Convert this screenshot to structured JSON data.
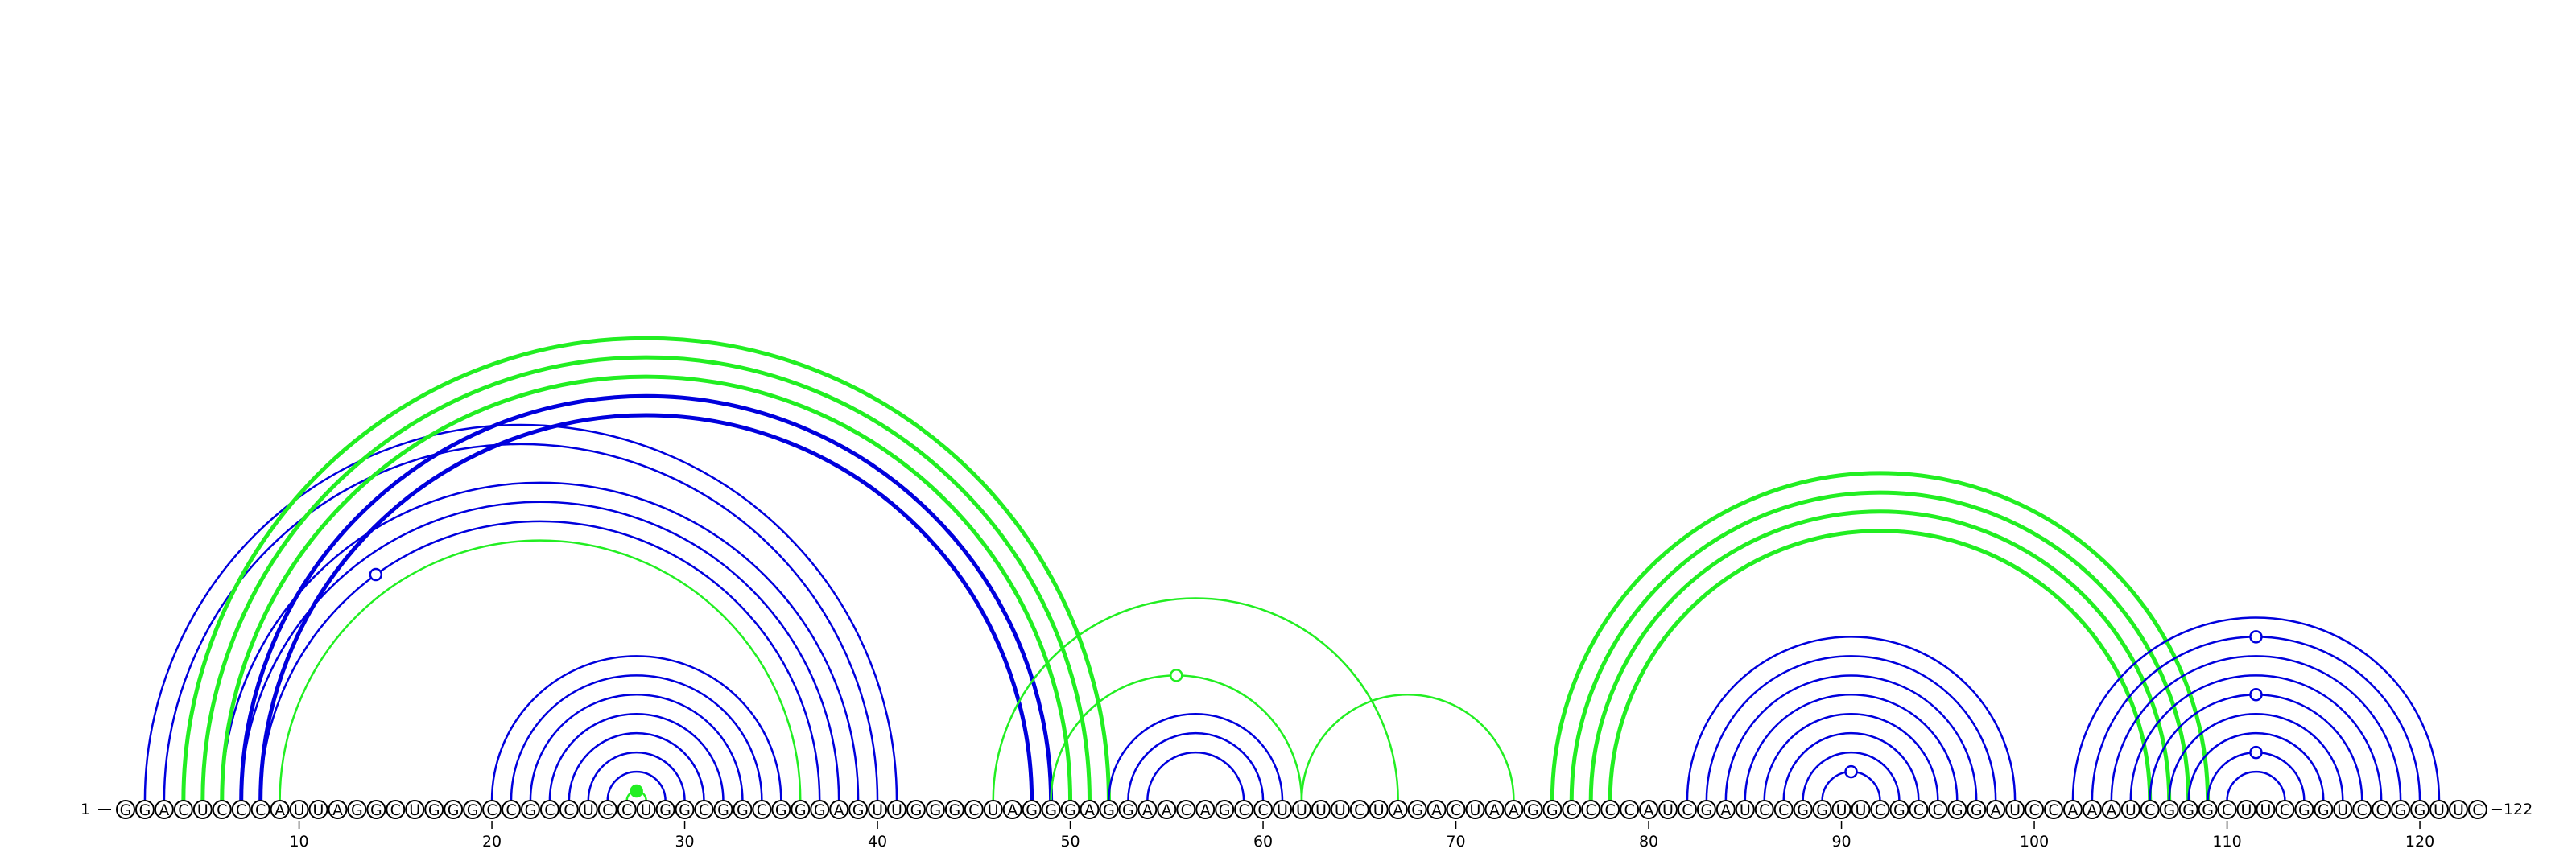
{
  "diagram": {
    "sequence": "GGACUCCCAUUAGGCUGGGCCGCCUCCUGGCGGCGGGAGUUGGGCUAGGGAGGAACAGCCUUUUCUAGACUAAGGCCCCAUCGAUCCGGUUCGCCGGAUCCAAAUCGGGCUUCGGUCCGGUUC",
    "start_label": "1",
    "end_label": "122",
    "ticks": [
      10,
      20,
      30,
      40,
      50,
      60,
      70,
      80,
      90,
      100,
      110,
      120
    ],
    "colors": {
      "blue": "#0000dd",
      "green": "#22ee22",
      "text": "#000000"
    },
    "arcs": [
      {
        "i": 2,
        "j": 41,
        "color": "blue",
        "weight": 1
      },
      {
        "i": 3,
        "j": 40,
        "color": "blue",
        "weight": 1
      },
      {
        "i": 6,
        "j": 39,
        "color": "blue",
        "weight": 1
      },
      {
        "i": 7,
        "j": 38,
        "color": "blue",
        "weight": 1
      },
      {
        "i": 8,
        "j": 37,
        "color": "blue",
        "weight": 1
      },
      {
        "i": 4,
        "j": 52,
        "color": "green",
        "weight": 2
      },
      {
        "i": 5,
        "j": 51,
        "color": "green",
        "weight": 2
      },
      {
        "i": 6,
        "j": 50,
        "color": "green",
        "weight": 2
      },
      {
        "i": 7,
        "j": 49,
        "color": "blue",
        "weight": 2
      },
      {
        "i": 8,
        "j": 48,
        "color": "blue",
        "weight": 2
      },
      {
        "i": 9,
        "j": 36,
        "color": "green",
        "weight": 1
      },
      {
        "i": 20,
        "j": 35,
        "color": "blue",
        "weight": 1
      },
      {
        "i": 21,
        "j": 34,
        "color": "blue",
        "weight": 1
      },
      {
        "i": 22,
        "j": 33,
        "color": "blue",
        "weight": 1
      },
      {
        "i": 23,
        "j": 32,
        "color": "blue",
        "weight": 1
      },
      {
        "i": 24,
        "j": 31,
        "color": "blue",
        "weight": 1
      },
      {
        "i": 25,
        "j": 30,
        "color": "blue",
        "weight": 1
      },
      {
        "i": 26,
        "j": 29,
        "color": "blue",
        "weight": 1
      },
      {
        "i": 27,
        "j": 28,
        "color": "green",
        "weight": 1
      },
      {
        "i": 46,
        "j": 67,
        "color": "green",
        "weight": 1
      },
      {
        "i": 49,
        "j": 62,
        "color": "green",
        "weight": 1
      },
      {
        "i": 52,
        "j": 61,
        "color": "blue",
        "weight": 1
      },
      {
        "i": 53,
        "j": 60,
        "color": "blue",
        "weight": 1
      },
      {
        "i": 54,
        "j": 59,
        "color": "blue",
        "weight": 1
      },
      {
        "i": 62,
        "j": 73,
        "color": "green",
        "weight": 1
      },
      {
        "i": 75,
        "j": 109,
        "color": "green",
        "weight": 2
      },
      {
        "i": 76,
        "j": 108,
        "color": "green",
        "weight": 2
      },
      {
        "i": 77,
        "j": 107,
        "color": "green",
        "weight": 2
      },
      {
        "i": 78,
        "j": 106,
        "color": "green",
        "weight": 2
      },
      {
        "i": 82,
        "j": 99,
        "color": "blue",
        "weight": 1
      },
      {
        "i": 83,
        "j": 98,
        "color": "blue",
        "weight": 1
      },
      {
        "i": 84,
        "j": 97,
        "color": "blue",
        "weight": 1
      },
      {
        "i": 85,
        "j": 96,
        "color": "blue",
        "weight": 1
      },
      {
        "i": 86,
        "j": 95,
        "color": "blue",
        "weight": 1
      },
      {
        "i": 87,
        "j": 94,
        "color": "blue",
        "weight": 1
      },
      {
        "i": 88,
        "j": 93,
        "color": "blue",
        "weight": 1
      },
      {
        "i": 89,
        "j": 92,
        "color": "blue",
        "weight": 1
      },
      {
        "i": 102,
        "j": 121,
        "color": "blue",
        "weight": 1
      },
      {
        "i": 103,
        "j": 120,
        "color": "blue",
        "weight": 1
      },
      {
        "i": 104,
        "j": 119,
        "color": "blue",
        "weight": 1
      },
      {
        "i": 105,
        "j": 118,
        "color": "blue",
        "weight": 1
      },
      {
        "i": 106,
        "j": 117,
        "color": "blue",
        "weight": 1
      },
      {
        "i": 107,
        "j": 116,
        "color": "blue",
        "weight": 1
      },
      {
        "i": 108,
        "j": 115,
        "color": "blue",
        "weight": 1
      },
      {
        "i": 109,
        "j": 114,
        "color": "blue",
        "weight": 1
      },
      {
        "i": 110,
        "j": 113,
        "color": "blue",
        "weight": 1
      }
    ],
    "markers": [
      {
        "after_arc": 4,
        "t": 0.3,
        "color": "blue",
        "filled": false
      },
      {
        "after_arc": 18,
        "t": 0.5,
        "color": "green",
        "filled": true
      },
      {
        "after_arc": 20,
        "t": 0.5,
        "color": "green",
        "filled": false
      },
      {
        "after_arc": 36,
        "t": 0.5,
        "color": "blue",
        "filled": false
      },
      {
        "after_arc": 38,
        "t": 0.5,
        "color": "blue",
        "filled": false
      },
      {
        "after_arc": 41,
        "t": 0.5,
        "color": "blue",
        "filled": false
      },
      {
        "after_arc": 44,
        "t": 0.5,
        "color": "blue",
        "filled": false
      }
    ]
  }
}
